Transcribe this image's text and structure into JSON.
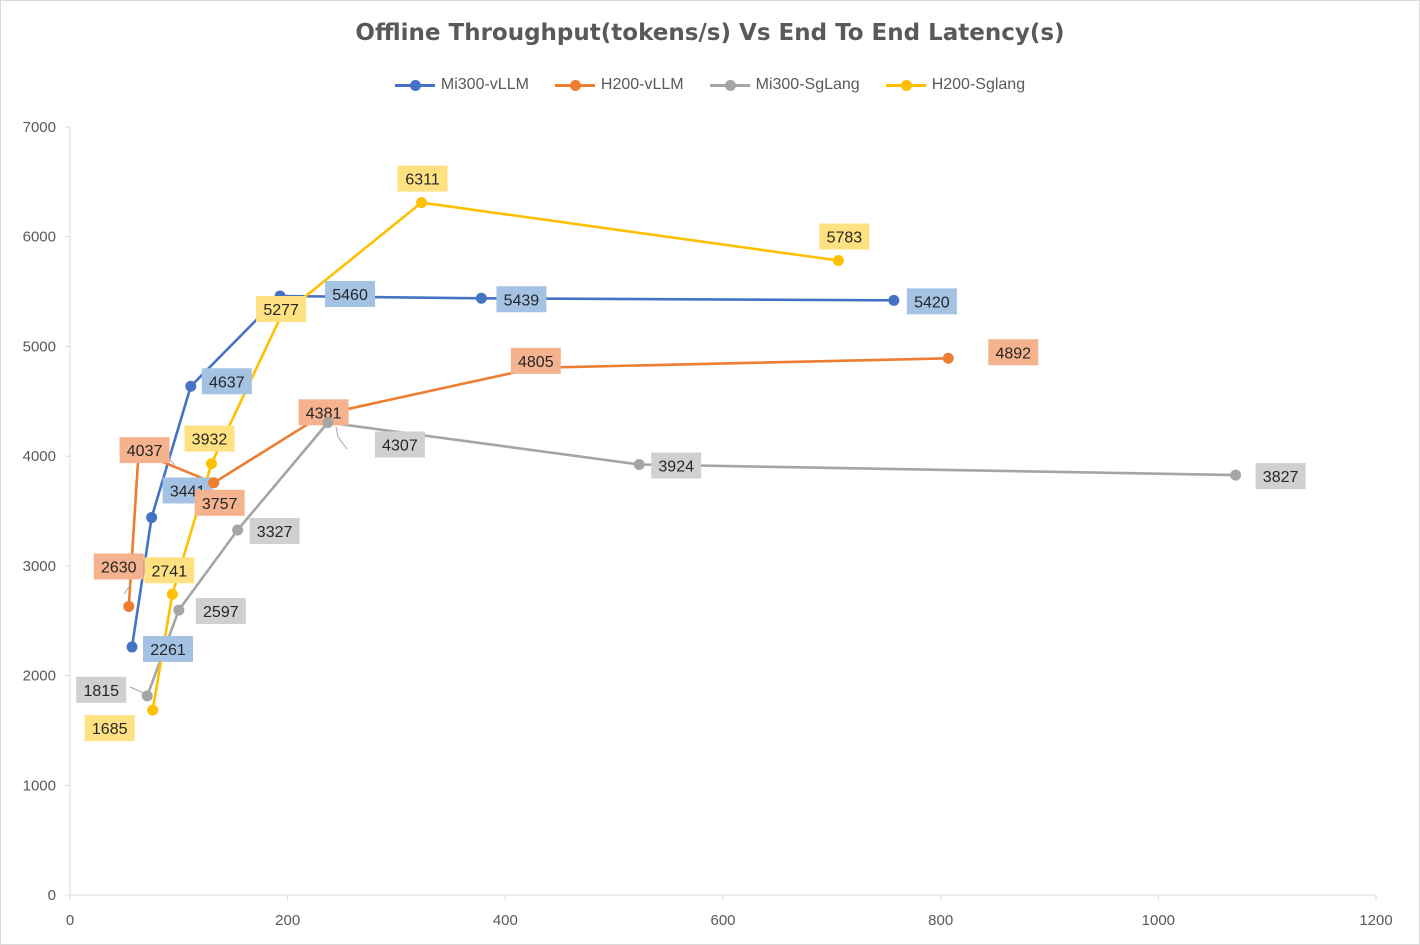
{
  "chart_data": {
    "type": "scatter",
    "title": "Offline Throughput(tokens/s) Vs End To End Latency(s)",
    "xlabel": "",
    "ylabel": "",
    "xlim": [
      0,
      1200
    ],
    "ylim": [
      0,
      7000
    ],
    "x_ticks": [
      "0",
      "200",
      "400",
      "600",
      "800",
      "1000",
      "1200"
    ],
    "y_ticks": [
      "0",
      "1000",
      "2000",
      "3000",
      "4000",
      "5000",
      "6000",
      "7000"
    ],
    "grid": false,
    "legend_position": "top",
    "series": [
      {
        "name": "Mi300-vLLM",
        "color": "#4472C4",
        "label_bg": "#A4C2E3",
        "x": [
          57,
          75,
          111,
          193,
          378,
          757
        ],
        "y": [
          2261,
          3441,
          4637,
          5460,
          5439,
          5420
        ],
        "labels": [
          "2261",
          "3441",
          "4637",
          "5460",
          "5439",
          "5420"
        ]
      },
      {
        "name": "H200-vLLM",
        "color": "#ED7D31",
        "label_bg": "#F4B28E",
        "x": [
          54,
          63,
          132,
          233,
          428,
          807
        ],
        "y": [
          2630,
          4037,
          3757,
          4381,
          4805,
          4892
        ],
        "labels": [
          "2630",
          "4037",
          "3757",
          "4381",
          "4805",
          "4892"
        ]
      },
      {
        "name": "Mi300-SgLang",
        "color": "#A5A5A5",
        "label_bg": "#D0D0D0",
        "x": [
          71,
          100,
          154,
          237,
          523,
          1071
        ],
        "y": [
          1815,
          2597,
          3327,
          4307,
          3924,
          3827
        ],
        "labels": [
          "1815",
          "2597",
          "3327",
          "4307",
          "3924",
          "3827"
        ]
      },
      {
        "name": "H200-Sglang",
        "color": "#FFC000",
        "label_bg": "#FFE181",
        "x": [
          76,
          94,
          130,
          194,
          323,
          706
        ],
        "y": [
          1685,
          2741,
          3932,
          5277,
          6311,
          5783
        ],
        "labels": [
          "1685",
          "2741",
          "3932",
          "5277",
          "6311",
          "5783"
        ]
      }
    ]
  }
}
